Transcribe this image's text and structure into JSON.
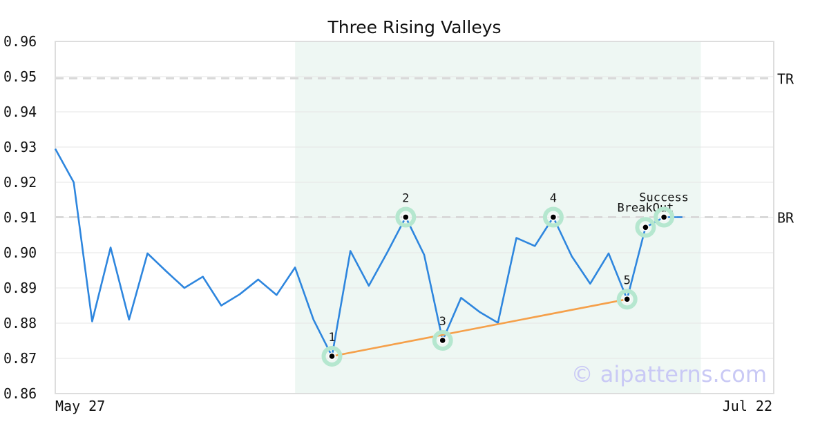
{
  "chart_data": {
    "type": "line",
    "title": "Three Rising Valleys",
    "ylim": [
      0.86,
      0.96
    ],
    "yticks": [
      "0.96",
      "0.95",
      "0.94",
      "0.93",
      "0.92",
      "0.91",
      "0.90",
      "0.89",
      "0.88",
      "0.87",
      "0.86"
    ],
    "ytick_values": [
      0.96,
      0.95,
      0.94,
      0.93,
      0.92,
      0.91,
      0.9,
      0.89,
      0.88,
      0.87,
      0.86
    ],
    "x_start_label": "May 27",
    "x_end_label": "Jul 22",
    "grid": true,
    "watermark": "© aipatterns.com",
    "colors": {
      "series": "#2e86de",
      "trend": "#f5a04a",
      "shade": "#eef7f3",
      "marker_ring": "#b5e7cf",
      "level": "#d9d9d9",
      "grid": "#e6e6e6",
      "frame": "#dddddd"
    },
    "series": [
      {
        "values": [
          0.9295,
          0.92,
          0.8805,
          0.9015,
          0.881,
          0.8998,
          0.8948,
          0.89,
          0.8932,
          0.885,
          0.8882,
          0.8924,
          0.888,
          0.8958,
          0.881,
          0.8706,
          0.9005,
          0.8906,
          0.9001,
          0.9101,
          0.8994,
          0.8751,
          0.8872,
          0.8832,
          0.8801,
          0.9042,
          0.9019,
          0.9101,
          0.899,
          0.8912,
          0.8998,
          0.8868,
          0.9072,
          0.9101,
          0.9101
        ]
      }
    ],
    "shaded_range": {
      "start_index": 13,
      "end_index": 35
    },
    "levels": [
      {
        "label": "TR",
        "value": 0.9495
      },
      {
        "label": "BR",
        "value": 0.9101
      }
    ],
    "trendline": {
      "from_index": 15,
      "to_index": 31
    },
    "points": [
      {
        "label": "1",
        "index": 15
      },
      {
        "label": "2",
        "index": 19
      },
      {
        "label": "3",
        "index": 21
      },
      {
        "label": "4",
        "index": 27
      },
      {
        "label": "5",
        "index": 31
      },
      {
        "label": "BreakOut",
        "index": 32
      },
      {
        "label": "Success",
        "index": 33
      }
    ]
  }
}
